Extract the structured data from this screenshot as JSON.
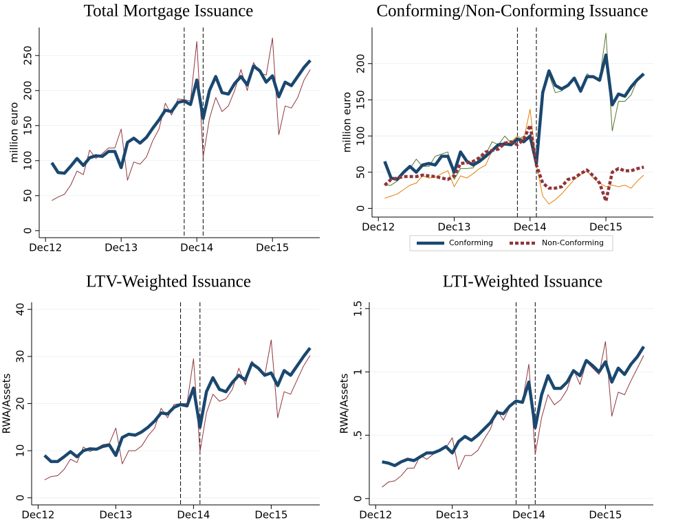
{
  "chart_data": [
    {
      "type": "line",
      "title": "Total Mortgage Issuance",
      "y_label": "million euro",
      "x": [
        1,
        2,
        3,
        4,
        5,
        6,
        7,
        8,
        9,
        10,
        11,
        12,
        13,
        14,
        15,
        16,
        17,
        18,
        19,
        20,
        21,
        22,
        23,
        24,
        25,
        26,
        27,
        28,
        29,
        30,
        31,
        32,
        33,
        34,
        35,
        36,
        37,
        38,
        39,
        40,
        41,
        42
      ],
      "xlim": [
        -1,
        43.5
      ],
      "xticks": [
        {
          "value": 0,
          "label": "Dec12"
        },
        {
          "value": 12,
          "label": "Dec13"
        },
        {
          "value": 24,
          "label": "Dec14"
        },
        {
          "value": 36,
          "label": "Dec15"
        }
      ],
      "ylim": [
        -10,
        290
      ],
      "yticks": [
        0,
        50,
        100,
        150,
        200,
        250
      ],
      "grid": true,
      "vlines": [
        22,
        25
      ],
      "series": [
        {
          "color": "#1a476f",
          "line_width": 4.5,
          "values": [
            97,
            83,
            82,
            92,
            103,
            93,
            104,
            107,
            106,
            113,
            113,
            90,
            126,
            132,
            125,
            133,
            146,
            158,
            172,
            170,
            183,
            185,
            180,
            215,
            160,
            200,
            220,
            197,
            195,
            210,
            220,
            208,
            235,
            228,
            212,
            221,
            191,
            212,
            207,
            220,
            233,
            243
          ]
        },
        {
          "color": "#90353b",
          "line_width": 1,
          "values": [
            43,
            48,
            52,
            65,
            85,
            80,
            115,
            103,
            110,
            118,
            118,
            145,
            72,
            98,
            95,
            105,
            128,
            145,
            182,
            165,
            188,
            187,
            185,
            270,
            105,
            160,
            190,
            170,
            178,
            200,
            230,
            200,
            240,
            225,
            222,
            275,
            137,
            178,
            175,
            190,
            215,
            230
          ]
        }
      ]
    },
    {
      "type": "line",
      "title": "Conforming/Non-Conforming Issuance",
      "y_label": "million euro",
      "x": [
        1,
        2,
        3,
        4,
        5,
        6,
        7,
        8,
        9,
        10,
        11,
        12,
        13,
        14,
        15,
        16,
        17,
        18,
        19,
        20,
        21,
        22,
        23,
        24,
        25,
        26,
        27,
        28,
        29,
        30,
        31,
        32,
        33,
        34,
        35,
        36,
        37,
        38,
        39,
        40,
        41,
        42
      ],
      "xlim": [
        -1,
        43.5
      ],
      "xticks": [
        {
          "value": 0,
          "label": "Dec12"
        },
        {
          "value": 12,
          "label": "Dec13"
        },
        {
          "value": 24,
          "label": "Dec14"
        },
        {
          "value": 36,
          "label": "Dec15"
        }
      ],
      "ylim": [
        -12,
        250
      ],
      "yticks": [
        0,
        50,
        100,
        150,
        200
      ],
      "grid": true,
      "vlines": [
        22,
        25
      ],
      "series": [
        {
          "name": "Conforming",
          "color": "#1a476f",
          "line_width": 4.5,
          "values": [
            65,
            42,
            40,
            50,
            58,
            50,
            60,
            62,
            60,
            72,
            72,
            50,
            78,
            65,
            60,
            65,
            72,
            80,
            88,
            89,
            88,
            96,
            92,
            100,
            62,
            160,
            190,
            170,
            165,
            170,
            180,
            162,
            182,
            182,
            177,
            212,
            143,
            158,
            155,
            168,
            178,
            186
          ]
        },
        {
          "color": "#55752f",
          "line_width": 1,
          "values": [
            32,
            32,
            38,
            52,
            55,
            68,
            58,
            58,
            72,
            75,
            78,
            40,
            55,
            55,
            56,
            70,
            75,
            92,
            88,
            100,
            90,
            94,
            100,
            95,
            60,
            155,
            185,
            160,
            162,
            172,
            178,
            160,
            186,
            180,
            178,
            242,
            107,
            148,
            148,
            157,
            178,
            186
          ]
        },
        {
          "name": "Non-Conforming",
          "color": "#90353b",
          "line_width": 4.5,
          "dash": true,
          "values": [
            32,
            40,
            42,
            44,
            44,
            44,
            46,
            45,
            44,
            42,
            40,
            45,
            62,
            63,
            65,
            70,
            78,
            80,
            82,
            90,
            92,
            88,
            95,
            115,
            60,
            35,
            28,
            28,
            30,
            40,
            42,
            48,
            53,
            45,
            35,
            10,
            50,
            55,
            52,
            52,
            55,
            57
          ]
        },
        {
          "color": "#e37e00",
          "line_width": 1,
          "values": [
            14,
            17,
            20,
            26,
            32,
            35,
            45,
            42,
            43,
            48,
            52,
            30,
            45,
            42,
            48,
            55,
            60,
            80,
            85,
            88,
            92,
            100,
            95,
            137,
            60,
            17,
            6,
            12,
            20,
            30,
            40,
            47,
            52,
            42,
            35,
            30,
            32,
            30,
            32,
            28,
            38,
            46
          ]
        }
      ]
    },
    {
      "type": "line",
      "title": "LTV-Weighted Issuance",
      "y_label": "RWA/Assets",
      "x": [
        1,
        2,
        3,
        4,
        5,
        6,
        7,
        8,
        9,
        10,
        11,
        12,
        13,
        14,
        15,
        16,
        17,
        18,
        19,
        20,
        21,
        22,
        23,
        24,
        25,
        26,
        27,
        28,
        29,
        30,
        31,
        32,
        33,
        34,
        35,
        36,
        37,
        38,
        39,
        40,
        41,
        42
      ],
      "xlim": [
        -1,
        43.5
      ],
      "xticks": [
        {
          "value": 0,
          "label": "Dec12"
        },
        {
          "value": 12,
          "label": "Dec13"
        },
        {
          "value": 24,
          "label": "Dec14"
        },
        {
          "value": 36,
          "label": "Dec15"
        }
      ],
      "ylim": [
        -1.5,
        41.5
      ],
      "yticks": [
        0,
        10,
        20,
        30,
        40
      ],
      "grid": true,
      "vlines": [
        22,
        25
      ],
      "series": [
        {
          "color": "#1a476f",
          "line_width": 4.5,
          "values": [
            9,
            7.7,
            7.7,
            8.7,
            9.8,
            8.7,
            10,
            10.4,
            10.3,
            10.9,
            11.2,
            9,
            12.8,
            13.5,
            13.3,
            14,
            15,
            16.3,
            18,
            17.8,
            19.2,
            19.8,
            19.5,
            23.3,
            15,
            22.5,
            25.5,
            23,
            22.5,
            24.5,
            26,
            25,
            28.5,
            27.5,
            26,
            26.5,
            23.8,
            27,
            26,
            28,
            30,
            31.8
          ]
        },
        {
          "color": "#90353b",
          "line_width": 1,
          "values": [
            3.8,
            4.5,
            4.7,
            6,
            8.2,
            7.5,
            10.8,
            9.8,
            10.5,
            11.3,
            11.5,
            14.8,
            7.2,
            10,
            10,
            11,
            13.2,
            14.8,
            19,
            17,
            19.8,
            20,
            20,
            29.5,
            9.8,
            18,
            22,
            20.5,
            21,
            23,
            27.5,
            24,
            29,
            27.5,
            26,
            33.5,
            17,
            22.5,
            22,
            25,
            28,
            30.2
          ]
        }
      ]
    },
    {
      "type": "line",
      "title": "LTI-Weighted Issuance",
      "y_label": "RWA/Assets",
      "x": [
        1,
        2,
        3,
        4,
        5,
        6,
        7,
        8,
        9,
        10,
        11,
        12,
        13,
        14,
        15,
        16,
        17,
        18,
        19,
        20,
        21,
        22,
        23,
        24,
        25,
        26,
        27,
        28,
        29,
        30,
        31,
        32,
        33,
        34,
        35,
        36,
        37,
        38,
        39,
        40,
        41,
        42
      ],
      "xlim": [
        -1,
        43.5
      ],
      "xticks": [
        {
          "value": 0,
          "label": "Dec12"
        },
        {
          "value": 12,
          "label": "Dec13"
        },
        {
          "value": 24,
          "label": "Dec14"
        },
        {
          "value": 36,
          "label": "Dec15"
        }
      ],
      "ylim": [
        -0.05,
        1.55
      ],
      "yticks": [
        0,
        {
          "value": 0.5,
          "label": ".5"
        },
        1,
        1.5
      ],
      "grid": true,
      "vlines": [
        22,
        25
      ],
      "series": [
        {
          "color": "#1a476f",
          "line_width": 4.5,
          "values": [
            0.29,
            0.28,
            0.26,
            0.29,
            0.31,
            0.3,
            0.33,
            0.36,
            0.36,
            0.38,
            0.41,
            0.36,
            0.45,
            0.49,
            0.46,
            0.5,
            0.55,
            0.6,
            0.68,
            0.67,
            0.73,
            0.77,
            0.76,
            0.92,
            0.56,
            0.82,
            0.97,
            0.87,
            0.87,
            0.92,
            1.01,
            0.97,
            1.09,
            1.05,
            1,
            1.08,
            0.92,
            1.03,
            0.98,
            1.06,
            1.12,
            1.2
          ]
        },
        {
          "color": "#90353b",
          "line_width": 1,
          "values": [
            0.09,
            0.13,
            0.14,
            0.18,
            0.24,
            0.24,
            0.34,
            0.31,
            0.35,
            0.38,
            0.4,
            0.48,
            0.23,
            0.34,
            0.34,
            0.38,
            0.47,
            0.55,
            0.7,
            0.62,
            0.72,
            0.76,
            0.76,
            1.06,
            0.35,
            0.64,
            0.82,
            0.74,
            0.78,
            0.86,
            1.02,
            0.9,
            1.08,
            1.03,
            0.98,
            1.24,
            0.65,
            0.84,
            0.82,
            0.93,
            1.03,
            1.13
          ]
        }
      ]
    }
  ]
}
